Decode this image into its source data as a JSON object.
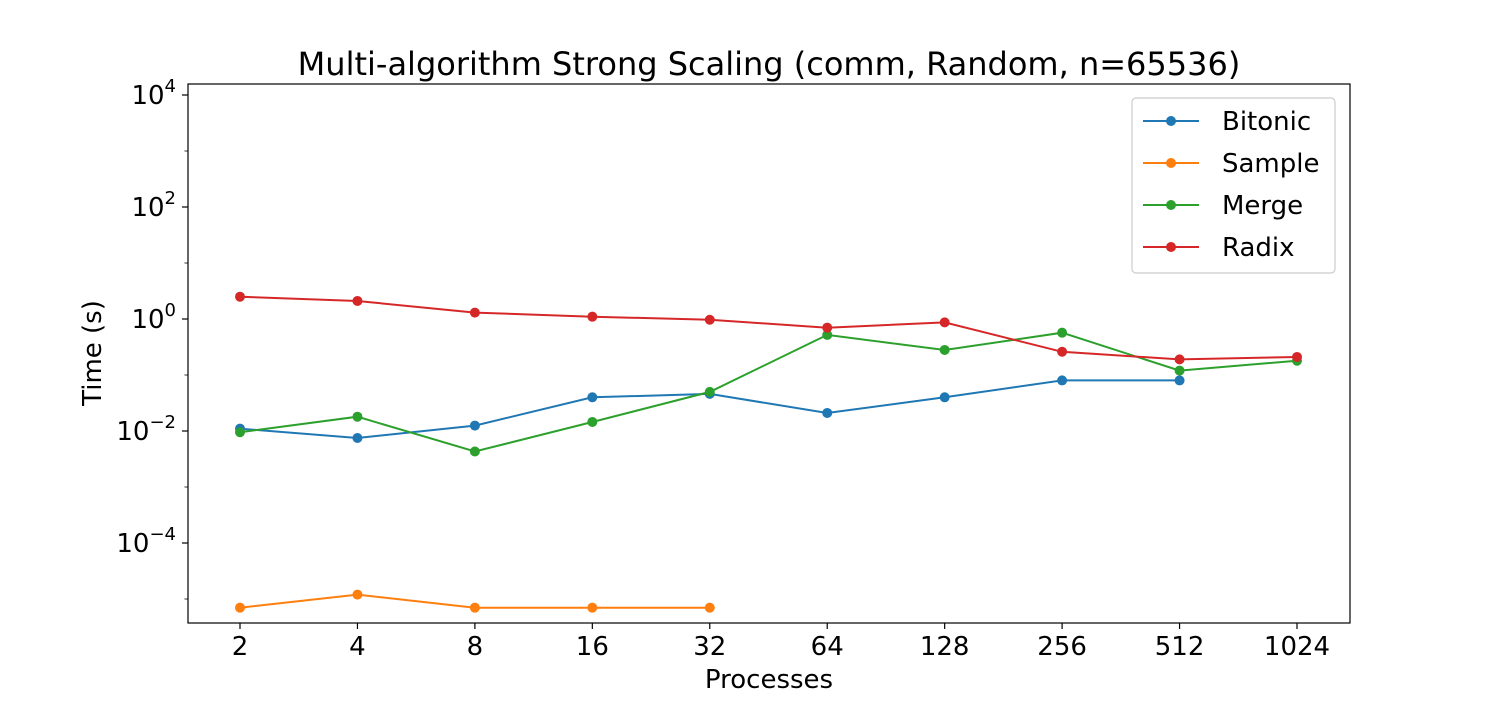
{
  "chart_data": {
    "type": "line",
    "title": "Multi-algorithm Strong Scaling (comm, Random, n=65536)",
    "xlabel": "Processes",
    "ylabel": "Time (s)",
    "x_scale": "log2",
    "y_scale": "log10",
    "x_ticks": [
      2,
      4,
      8,
      16,
      32,
      64,
      128,
      256,
      512,
      1024
    ],
    "x_tick_labels": [
      "2",
      "4",
      "8",
      "16",
      "32",
      "64",
      "128",
      "256",
      "512",
      "1024"
    ],
    "y_ticks": [
      -4,
      -2,
      0,
      2,
      4
    ],
    "y_tick_labels": [
      {
        "base": "10",
        "exp": "−4"
      },
      {
        "base": "10",
        "exp": "−2"
      },
      {
        "base": "10",
        "exp": "0"
      },
      {
        "base": "10",
        "exp": "2"
      },
      {
        "base": "10",
        "exp": "4"
      }
    ],
    "ylim": [
      3e-06,
      15000
    ],
    "grid": false,
    "legend_position": "top-right",
    "series": [
      {
        "name": "Bitonic",
        "color": "#1f77b4",
        "points": [
          [
            2,
            0.011
          ],
          [
            4,
            0.0075
          ],
          [
            8,
            0.0125
          ],
          [
            16,
            0.04
          ],
          [
            32,
            0.046
          ],
          [
            64,
            0.021
          ],
          [
            128,
            0.04
          ],
          [
            256,
            0.08
          ],
          [
            512,
            0.08
          ]
        ]
      },
      {
        "name": "Sample",
        "color": "#ff7f0e",
        "points": [
          [
            2,
            7e-06
          ],
          [
            4,
            1.2e-05
          ],
          [
            8,
            7e-06
          ],
          [
            16,
            7e-06
          ],
          [
            32,
            7e-06
          ]
        ]
      },
      {
        "name": "Merge",
        "color": "#2ca02c",
        "points": [
          [
            2,
            0.0095
          ],
          [
            4,
            0.018
          ],
          [
            8,
            0.0043
          ],
          [
            16,
            0.0145
          ],
          [
            32,
            0.05
          ],
          [
            64,
            0.52
          ],
          [
            128,
            0.28
          ],
          [
            256,
            0.57
          ],
          [
            512,
            0.12
          ],
          [
            1024,
            0.18
          ]
        ]
      },
      {
        "name": "Radix",
        "color": "#d62728",
        "points": [
          [
            2,
            2.5
          ],
          [
            4,
            2.1
          ],
          [
            8,
            1.3
          ],
          [
            16,
            1.1
          ],
          [
            32,
            0.97
          ],
          [
            64,
            0.7
          ],
          [
            128,
            0.87
          ],
          [
            256,
            0.26
          ],
          [
            512,
            0.19
          ],
          [
            1024,
            0.21
          ]
        ]
      }
    ]
  }
}
